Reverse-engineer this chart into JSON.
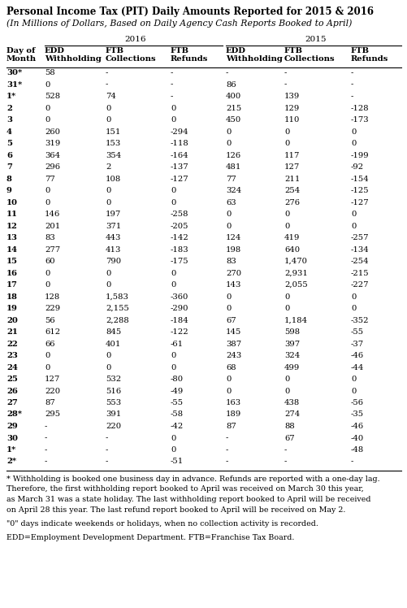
{
  "title": "Personal Income Tax (PIT) Daily Amounts Reported for 2015 & 2016",
  "subtitle": "(In Millions of Dollars, Based on Daily Agency Cash Reports Booked to April)",
  "year_2016": "2016",
  "year_2015": "2015",
  "col_headers": [
    "Day of\nMonth",
    "EDD\nWithholding",
    "FTB\nCollections",
    "FTB\nRefunds",
    "EDD\nWithholding",
    "FTB\nCollections",
    "FTB\nRefunds"
  ],
  "rows": [
    [
      "30*",
      "58",
      "-",
      "-",
      "-",
      "-",
      "-"
    ],
    [
      "31*",
      "0",
      "-",
      "-",
      "86",
      "-",
      "-"
    ],
    [
      "1*",
      "528",
      "74",
      "-",
      "400",
      "139",
      "-"
    ],
    [
      "2",
      "0",
      "0",
      "0",
      "215",
      "129",
      "-128"
    ],
    [
      "3",
      "0",
      "0",
      "0",
      "450",
      "110",
      "-173"
    ],
    [
      "4",
      "260",
      "151",
      "-294",
      "0",
      "0",
      "0"
    ],
    [
      "5",
      "319",
      "153",
      "-118",
      "0",
      "0",
      "0"
    ],
    [
      "6",
      "364",
      "354",
      "-164",
      "126",
      "117",
      "-199"
    ],
    [
      "7",
      "296",
      "2",
      "-137",
      "481",
      "127",
      "-92"
    ],
    [
      "8",
      "77",
      "108",
      "-127",
      "77",
      "211",
      "-154"
    ],
    [
      "9",
      "0",
      "0",
      "0",
      "324",
      "254",
      "-125"
    ],
    [
      "10",
      "0",
      "0",
      "0",
      "63",
      "276",
      "-127"
    ],
    [
      "11",
      "146",
      "197",
      "-258",
      "0",
      "0",
      "0"
    ],
    [
      "12",
      "201",
      "371",
      "-205",
      "0",
      "0",
      "0"
    ],
    [
      "13",
      "83",
      "443",
      "-142",
      "124",
      "419",
      "-257"
    ],
    [
      "14",
      "277",
      "413",
      "-183",
      "198",
      "640",
      "-134"
    ],
    [
      "15",
      "60",
      "790",
      "-175",
      "83",
      "1,470",
      "-254"
    ],
    [
      "16",
      "0",
      "0",
      "0",
      "270",
      "2,931",
      "-215"
    ],
    [
      "17",
      "0",
      "0",
      "0",
      "143",
      "2,055",
      "-227"
    ],
    [
      "18",
      "128",
      "1,583",
      "-360",
      "0",
      "0",
      "0"
    ],
    [
      "19",
      "229",
      "2,155",
      "-290",
      "0",
      "0",
      "0"
    ],
    [
      "20",
      "56",
      "2,288",
      "-184",
      "67",
      "1,184",
      "-352"
    ],
    [
      "21",
      "612",
      "845",
      "-122",
      "145",
      "598",
      "-55"
    ],
    [
      "22",
      "66",
      "401",
      "-61",
      "387",
      "397",
      "-37"
    ],
    [
      "23",
      "0",
      "0",
      "0",
      "243",
      "324",
      "-46"
    ],
    [
      "24",
      "0",
      "0",
      "0",
      "68",
      "499",
      "-44"
    ],
    [
      "25",
      "127",
      "532",
      "-80",
      "0",
      "0",
      "0"
    ],
    [
      "26",
      "220",
      "516",
      "-49",
      "0",
      "0",
      "0"
    ],
    [
      "27",
      "87",
      "553",
      "-55",
      "163",
      "438",
      "-56"
    ],
    [
      "28*",
      "295",
      "391",
      "-58",
      "189",
      "274",
      "-35"
    ],
    [
      "29",
      "-",
      "220",
      "-42",
      "87",
      "88",
      "-46"
    ],
    [
      "30",
      "-",
      "-",
      "0",
      "-",
      "67",
      "-40"
    ],
    [
      "1*",
      "-",
      "-",
      "0",
      "-",
      "-",
      "-48"
    ],
    [
      "2*",
      "-",
      "-",
      "-51",
      "-",
      "-",
      "-"
    ]
  ],
  "footnote1": "* Withholding is booked one business day in advance. Refunds are reported with a one-day lag.",
  "footnote2": "Therefore, the first withholding report booked to April was received on March 30 this year,",
  "footnote3": "as March 31 was a state holiday. The last withholding report booked to April will be received",
  "footnote4": "on April 28 this year. The last refund report booked to April will be received on May 2.",
  "footnote5": "\"0\" days indicate weekends or holidays, when no collection activity is recorded.",
  "footnote6": "EDD=Employment Development Department. FTB=Franchise Tax Board.",
  "bg_color": "#ffffff",
  "text_color": "#000000"
}
